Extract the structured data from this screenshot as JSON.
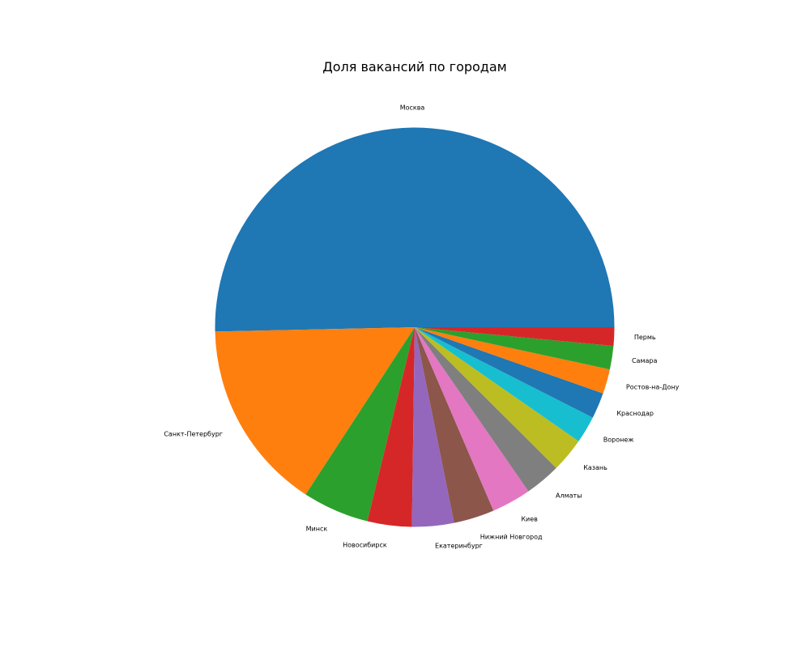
{
  "chart_data": {
    "type": "pie",
    "title": "Доля вакансий по городам",
    "categories": [
      "Москва",
      "Санкт-Петербург",
      "Минск",
      "Новосибирск",
      "Екатеринбург",
      "Нижний Новгород",
      "Киев",
      "Алматы",
      "Казань",
      "Воронеж",
      "Краснодар",
      "Ростов-на-Дону",
      "Самара",
      "Пермь"
    ],
    "values": [
      50.5,
      15.5,
      5.4,
      3.6,
      3.4,
      3.3,
      3.2,
      2.9,
      2.8,
      2.2,
      2.1,
      2.0,
      1.9,
      1.5
    ],
    "colors": [
      "#1f77b4",
      "#ff7f0e",
      "#2ca02c",
      "#d62728",
      "#9467bd",
      "#8c564b",
      "#e377c2",
      "#7f7f7f",
      "#bcbd22",
      "#17becf",
      "#1f77b4",
      "#ff7f0e",
      "#2ca02c",
      "#d62728"
    ],
    "start_angle_deg": 0,
    "direction": "counterclockwise",
    "legend": "none"
  }
}
